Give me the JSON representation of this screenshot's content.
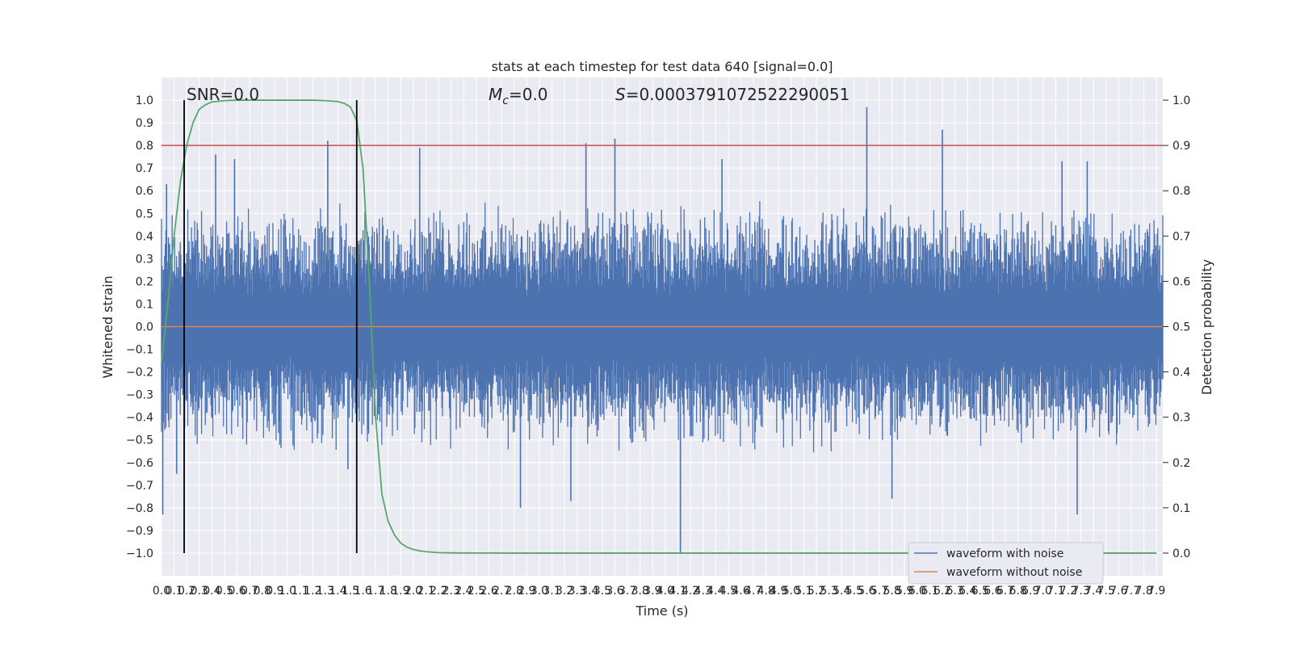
{
  "chart_data": {
    "type": "line",
    "title": "stats at each timestep for test data 640 [signal=0.0]",
    "xlabel": "Time (s)",
    "ylabel": "Whitened strain",
    "y2label": "Detection probability",
    "xlim": [
      0.0,
      7.95
    ],
    "ylim": [
      -1.1,
      1.1
    ],
    "y2lim": [
      -0.05,
      1.05
    ],
    "x_ticks": [
      0.0,
      0.1,
      0.2,
      0.3,
      0.4,
      0.5,
      0.6,
      0.7,
      0.8,
      0.9,
      1.0,
      1.1,
      1.2,
      1.3,
      1.4,
      1.5,
      1.6,
      1.7,
      1.8,
      1.9,
      2.0,
      2.1,
      2.2,
      2.3,
      2.4,
      2.5,
      2.6,
      2.7,
      2.8,
      2.9,
      3.0,
      3.1,
      3.2,
      3.3,
      3.4,
      3.5,
      3.6,
      3.7,
      3.8,
      3.9,
      4.0,
      4.1,
      4.2,
      4.3,
      4.4,
      4.5,
      4.6,
      4.7,
      4.8,
      4.9,
      5.0,
      5.1,
      5.2,
      5.3,
      5.4,
      5.5,
      5.6,
      5.7,
      5.8,
      5.9,
      6.0,
      6.1,
      6.2,
      6.3,
      6.4,
      6.5,
      6.6,
      6.7,
      6.8,
      6.9,
      7.0,
      7.1,
      7.2,
      7.3,
      7.4,
      7.5,
      7.6,
      7.7,
      7.8,
      7.9
    ],
    "y_ticks": [
      1.0,
      0.9,
      0.8,
      0.7,
      0.6,
      0.5,
      0.4,
      0.3,
      0.2,
      0.1,
      0.0,
      -0.1,
      -0.2,
      -0.3,
      -0.4,
      -0.5,
      -0.6,
      -0.7,
      -0.8,
      -0.9,
      -1.0
    ],
    "y_tick_labels": [
      "1.0",
      "0.9",
      "0.8",
      "0.7",
      "0.6",
      "0.5",
      "0.4",
      "0.3",
      "0.2",
      "0.1",
      "0.0",
      "−0.1",
      "−0.2",
      "−0.3",
      "−0.4",
      "−0.5",
      "−0.6",
      "−0.7",
      "−0.8",
      "−0.9",
      "−1.0"
    ],
    "y2_ticks": [
      1.0,
      0.9,
      0.8,
      0.7,
      0.6,
      0.5,
      0.4,
      0.3,
      0.2,
      0.1,
      0.0
    ],
    "y2_tick_labels": [
      "1.0",
      "0.9",
      "0.8",
      "0.7",
      "0.6",
      "0.5",
      "0.4",
      "0.3",
      "0.2",
      "0.1",
      "0.0"
    ],
    "grid": true,
    "legend_position": "bottom-right",
    "series": [
      {
        "name": "waveform with noise",
        "axis": "left",
        "color": "#4c72b0",
        "envelope_typical": 0.4,
        "peaks": [
          {
            "x": 0.01,
            "y": -0.83
          },
          {
            "x": 0.04,
            "y": 0.63
          },
          {
            "x": 0.12,
            "y": -0.65
          },
          {
            "x": 0.43,
            "y": 0.76
          },
          {
            "x": 0.58,
            "y": 0.74
          },
          {
            "x": 1.32,
            "y": 0.82
          },
          {
            "x": 1.48,
            "y": -0.63
          },
          {
            "x": 2.05,
            "y": 0.79
          },
          {
            "x": 2.85,
            "y": -0.8
          },
          {
            "x": 3.25,
            "y": -0.77
          },
          {
            "x": 3.37,
            "y": 0.81
          },
          {
            "x": 3.6,
            "y": 0.83
          },
          {
            "x": 4.12,
            "y": -1.0
          },
          {
            "x": 4.45,
            "y": 0.74
          },
          {
            "x": 5.6,
            "y": 0.97
          },
          {
            "x": 5.8,
            "y": -0.76
          },
          {
            "x": 6.2,
            "y": 0.87
          },
          {
            "x": 7.15,
            "y": 0.73
          },
          {
            "x": 7.27,
            "y": -0.83
          },
          {
            "x": 7.35,
            "y": 0.73
          }
        ]
      },
      {
        "name": "waveform without noise",
        "axis": "left",
        "color": "#dd8452",
        "x": [
          0.0,
          7.95
        ],
        "y": [
          0.0,
          0.0
        ]
      },
      {
        "axis": "right",
        "color": "#55a868",
        "x": [
          0.0,
          0.05,
          0.1,
          0.15,
          0.2,
          0.25,
          0.3,
          0.35,
          0.4,
          0.5,
          0.6,
          0.7,
          0.8,
          0.9,
          1.0,
          1.1,
          1.2,
          1.3,
          1.4,
          1.45,
          1.5,
          1.55,
          1.6,
          1.65,
          1.7,
          1.75,
          1.8,
          1.85,
          1.9,
          1.95,
          2.0,
          2.05,
          2.1,
          2.15,
          2.2,
          2.3,
          2.4,
          2.5,
          2.6,
          2.8,
          3.0,
          3.5,
          4.0,
          5.0,
          6.0,
          7.0,
          7.9
        ],
        "y": [
          0.42,
          0.55,
          0.7,
          0.82,
          0.9,
          0.95,
          0.98,
          0.99,
          0.996,
          0.999,
          1.0,
          1.0,
          1.0,
          1.0,
          1.0,
          1.0,
          1.0,
          0.999,
          0.997,
          0.993,
          0.985,
          0.955,
          0.85,
          0.6,
          0.3,
          0.13,
          0.07,
          0.04,
          0.022,
          0.013,
          0.008,
          0.005,
          0.003,
          0.002,
          0.001,
          0.0005,
          0.0003,
          0.0002,
          0.0001,
          0.0,
          0.0,
          0.0,
          0.0,
          0.0,
          0.0,
          0.0,
          0.0
        ]
      }
    ],
    "threshold": {
      "y2": 0.9,
      "color": "#c44e52"
    },
    "markers": [
      {
        "x": 0.18,
        "color": "#000000"
      },
      {
        "x": 1.55,
        "color": "#000000"
      }
    ],
    "annotations": {
      "snr": "SNR=0.0",
      "mc_symbol": "M",
      "mc_sub": "c",
      "mc_value": "=0.0",
      "s_symbol": "S",
      "s_value": "=0.0003791072522290051"
    }
  }
}
